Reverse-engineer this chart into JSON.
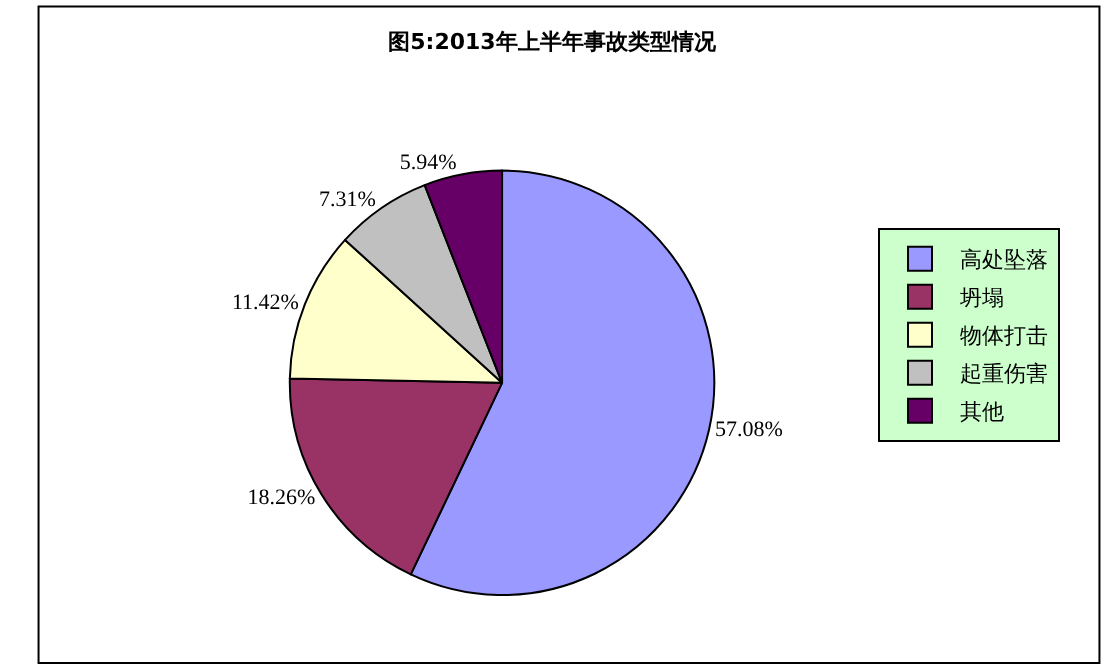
{
  "chart_data": {
    "type": "pie",
    "title": "图5:2013年上半年事故类型情况",
    "categories": [
      "高处坠落",
      "坍塌",
      "物体打击",
      "起重伤害",
      "其他"
    ],
    "values": [
      57.08,
      18.26,
      11.42,
      7.31,
      5.94
    ],
    "value_labels": [
      "57.08%",
      "18.26%",
      "11.42%",
      "7.31%",
      "5.94%"
    ],
    "colors": [
      "#9999ff",
      "#993366",
      "#ffffcc",
      "#c0c0c0",
      "#660066"
    ],
    "legend": "right"
  }
}
